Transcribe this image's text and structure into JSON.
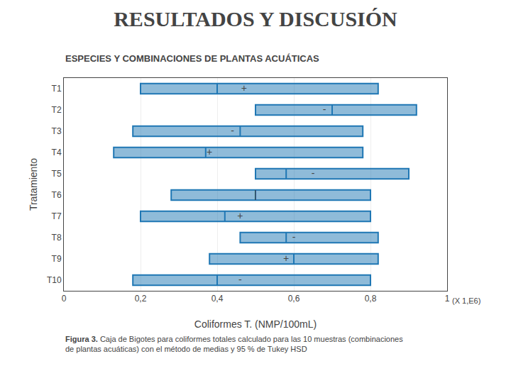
{
  "chart_data": {
    "type": "box",
    "orientation": "horizontal",
    "title": "RESULTADOS Y DISCUSIÓN",
    "subtitle": "ESPECIES Y COMBINACIONES DE PLANTAS ACUÁTICAS",
    "caption_bold": "Figura 3.",
    "caption": " Caja de Bigotes para coliformes totales calculado para las 10 muestras (combinaciones\nde plantas acuáticas) con el método de medias y 95 % de Tukey HSD",
    "xlabel": "Coliformes T. (NMP/100mL)",
    "ylabel": "Tratamiento",
    "annotations": [
      "(X 1,E6)"
    ],
    "categories": [
      "T1",
      "T2",
      "T3",
      "T4",
      "T5",
      "T6",
      "T7",
      "T8",
      "T9",
      "T10"
    ],
    "q1": [
      0.2,
      0.5,
      0.18,
      0.13,
      0.5,
      0.28,
      0.2,
      0.46,
      0.38,
      0.18
    ],
    "median": [
      0.4,
      0.7,
      0.46,
      0.37,
      0.58,
      0.5,
      0.42,
      0.58,
      0.6,
      0.4
    ],
    "q3": [
      0.82,
      0.92,
      0.78,
      0.78,
      0.9,
      0.8,
      0.8,
      0.82,
      0.82,
      0.8
    ],
    "mean": [
      0.47,
      0.68,
      0.44,
      0.38,
      0.65,
      0.5,
      0.46,
      0.6,
      0.58,
      0.46
    ],
    "mean_labels": [
      "+",
      "-",
      "-",
      "+",
      "-",
      "|",
      "+",
      "-",
      "+",
      "-"
    ],
    "xlim": [
      0,
      1
    ],
    "xticks": [
      0,
      {
        "value": 0.2,
        "label": "0,2"
      },
      {
        "value": 0.4,
        "label": "0,4"
      },
      {
        "value": 0.6,
        "label": "0,6"
      },
      {
        "value": 0.8,
        "label": "0,8"
      },
      1
    ],
    "grid": true
  }
}
